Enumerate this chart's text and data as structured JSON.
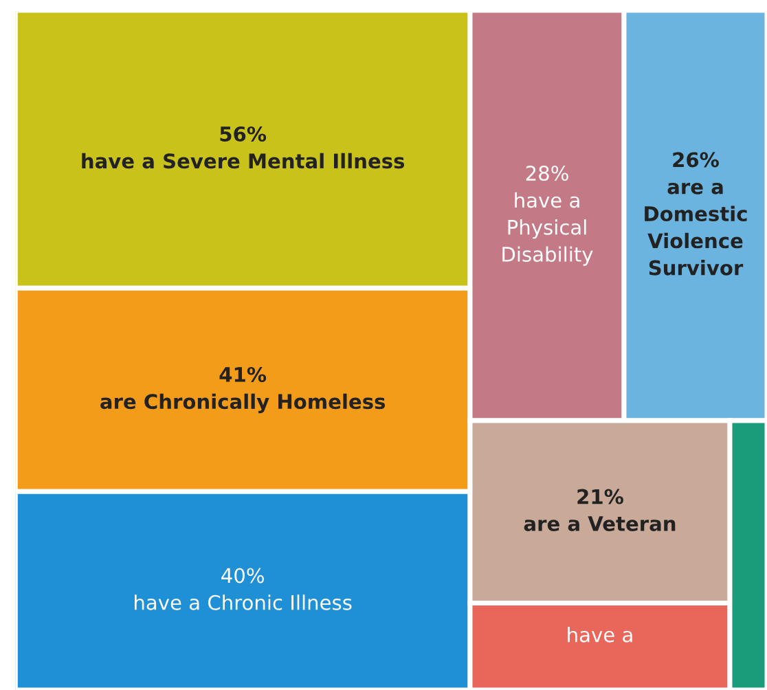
{
  "chart_data": {
    "type": "other",
    "categories": [
      "have a Severe Mental Illness",
      "are Chronically Homeless",
      "have a Chronic Illness",
      "have a\nPhysical\nDisability",
      "are a\nDomestic\nViolence\nSurvivor",
      "are a Veteran",
      "have a",
      null
    ],
    "values": [
      56,
      41,
      40,
      28,
      26,
      21,
      null,
      null
    ],
    "value_labels": [
      "56%",
      "41%",
      "40%",
      "28%",
      "26%",
      "21%",
      null,
      null
    ],
    "colors": [
      "#c9c21a",
      "#f39c1a",
      "#1f8fd6",
      "#c47a86",
      "#6cb4e0",
      "#c9aa98",
      "#e8665a",
      "#1a9c7a"
    ]
  }
}
